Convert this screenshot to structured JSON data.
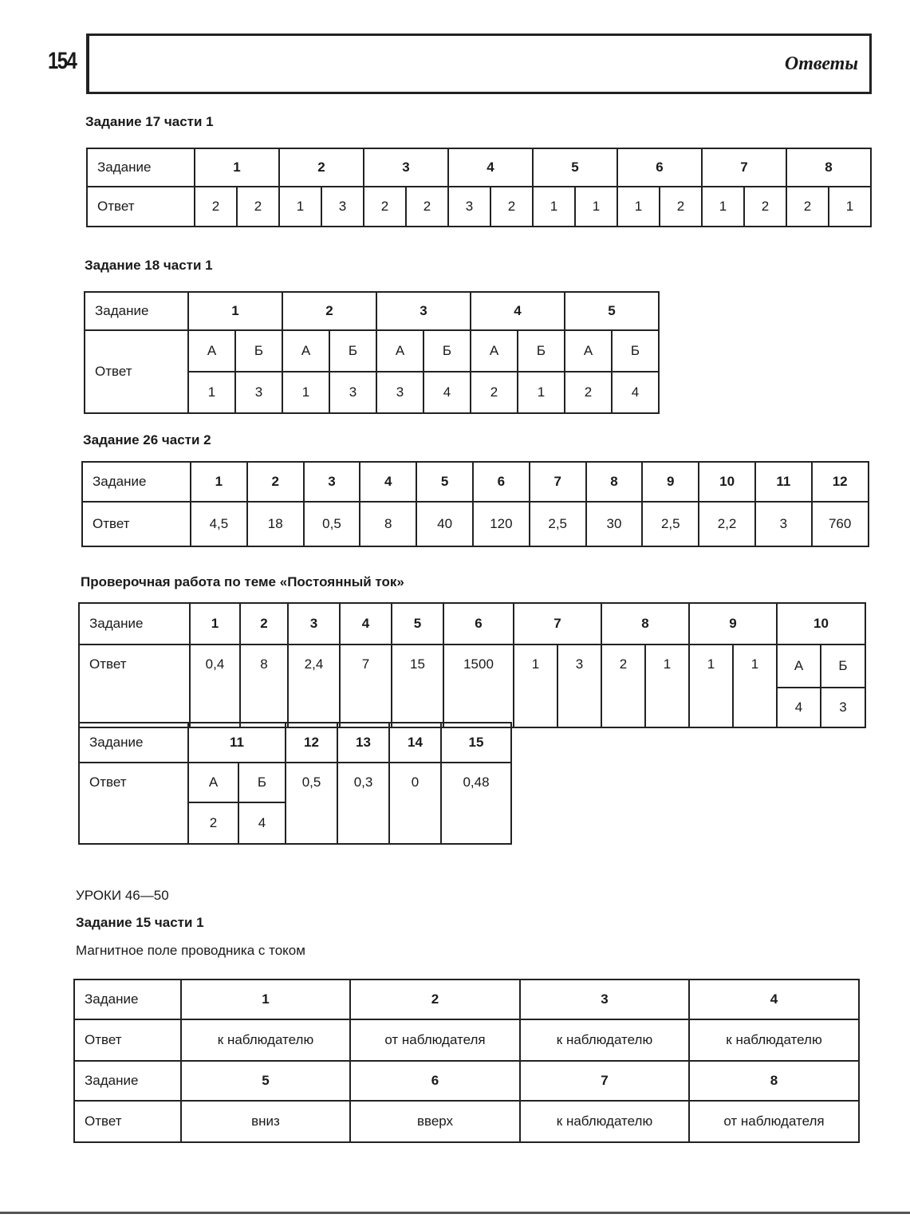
{
  "page_number": "154",
  "header_title": "Ответы",
  "t17": {
    "heading": "Задание 17 части 1",
    "row_labels": [
      "Задание",
      "Ответ"
    ],
    "tasks": [
      "1",
      "2",
      "3",
      "4",
      "5",
      "6",
      "7",
      "8"
    ],
    "answers": [
      [
        "2",
        "2"
      ],
      [
        "1",
        "3"
      ],
      [
        "2",
        "2"
      ],
      [
        "3",
        "2"
      ],
      [
        "1",
        "1"
      ],
      [
        "1",
        "2"
      ],
      [
        "1",
        "2"
      ],
      [
        "2",
        "1"
      ]
    ]
  },
  "t18": {
    "heading": "Задание 18 части 1",
    "row_labels": [
      "Задание",
      "Ответ"
    ],
    "tasks": [
      "1",
      "2",
      "3",
      "4",
      "5"
    ],
    "subheaders": [
      [
        "А",
        "Б"
      ],
      [
        "А",
        "Б"
      ],
      [
        "А",
        "Б"
      ],
      [
        "А",
        "Б"
      ],
      [
        "А",
        "Б"
      ]
    ],
    "answers": [
      [
        "1",
        "3"
      ],
      [
        "1",
        "3"
      ],
      [
        "3",
        "4"
      ],
      [
        "2",
        "1"
      ],
      [
        "2",
        "4"
      ]
    ]
  },
  "t26": {
    "heading": "Задание 26 части 2",
    "row_labels": [
      "Задание",
      "Ответ"
    ],
    "tasks": [
      "1",
      "2",
      "3",
      "4",
      "5",
      "6",
      "7",
      "8",
      "9",
      "10",
      "11",
      "12"
    ],
    "answers": [
      "4,5",
      "18",
      "0,5",
      "8",
      "40",
      "120",
      "2,5",
      "30",
      "2,5",
      "2,2",
      "3",
      "760"
    ]
  },
  "test": {
    "heading": "Проверочная работа по теме «Постоянный ток»",
    "row_labels": [
      "Задание",
      "Ответ"
    ],
    "part1": {
      "single_tasks": [
        "1",
        "2",
        "3",
        "4",
        "5",
        "6"
      ],
      "single_answers": [
        "0,4",
        "8",
        "2,4",
        "7",
        "15",
        "1500"
      ],
      "pair_tasks": [
        "7",
        "8",
        "9"
      ],
      "pair_answers": [
        [
          "1",
          "3"
        ],
        [
          "2",
          "1"
        ],
        [
          "1",
          "1"
        ]
      ],
      "task10": {
        "task": "10",
        "sub": [
          "А",
          "Б"
        ],
        "vals": [
          "4",
          "3"
        ]
      }
    },
    "part2": {
      "task11": {
        "task": "11",
        "sub": [
          "А",
          "Б"
        ],
        "vals": [
          "2",
          "4"
        ]
      },
      "single_tasks": [
        "12",
        "13",
        "14",
        "15"
      ],
      "single_answers": [
        "0,5",
        "0,3",
        "0",
        "0,48"
      ]
    }
  },
  "lessons": {
    "title": "УРОКИ 46—50",
    "heading": "Задание 15 части 1",
    "subtitle": "Магнитное поле проводника с током",
    "row_labels": [
      "Задание",
      "Ответ"
    ],
    "rows": [
      {
        "tasks": [
          "1",
          "2",
          "3",
          "4"
        ],
        "answers": [
          "к наблюдателю",
          "от наблюдателя",
          "к наблюдателю",
          "к наблюдателю"
        ]
      },
      {
        "tasks": [
          "5",
          "6",
          "7",
          "8"
        ],
        "answers": [
          "вниз",
          "вверх",
          "к наблюдателю",
          "от наблюдателя"
        ]
      }
    ]
  }
}
